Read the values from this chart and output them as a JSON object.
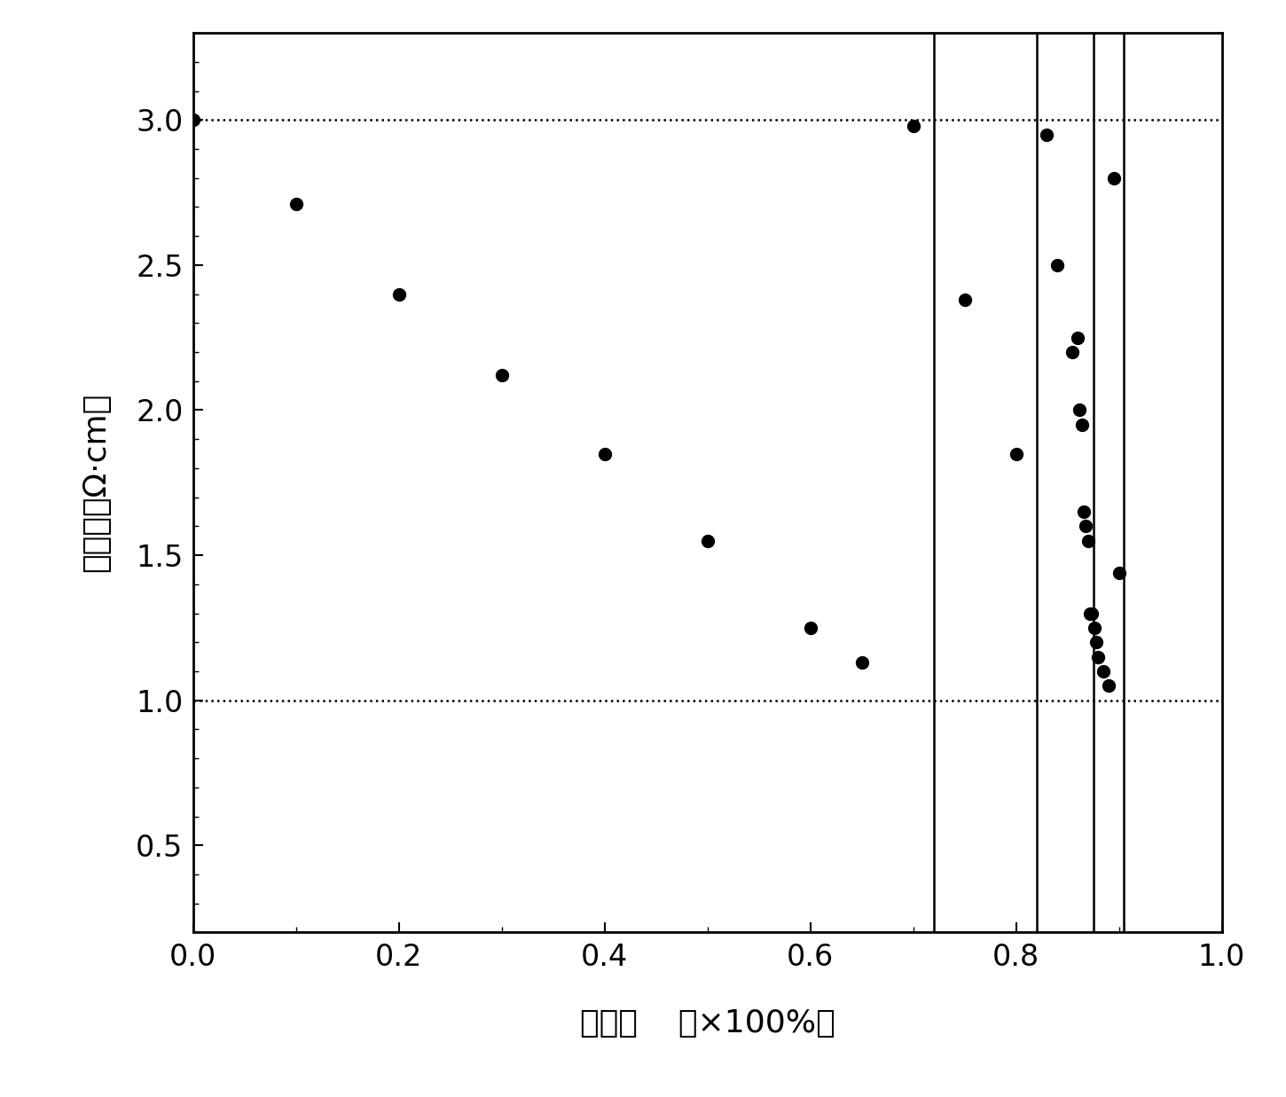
{
  "scatter_x": [
    0.0,
    0.1,
    0.2,
    0.3,
    0.4,
    0.5,
    0.6,
    0.65,
    0.7,
    0.75,
    0.8,
    0.83,
    0.84,
    0.855,
    0.86,
    0.862,
    0.864,
    0.866,
    0.868,
    0.87,
    0.872,
    0.874,
    0.876,
    0.878,
    0.88,
    0.885,
    0.89,
    0.895,
    0.9
  ],
  "scatter_y": [
    3.0,
    2.71,
    2.4,
    2.12,
    1.85,
    1.55,
    1.25,
    1.13,
    2.98,
    2.38,
    1.85,
    2.95,
    2.5,
    2.2,
    2.25,
    2.0,
    1.95,
    1.65,
    1.6,
    1.55,
    1.3,
    1.3,
    1.25,
    1.2,
    1.15,
    1.1,
    1.05,
    2.8,
    1.44
  ],
  "vlines": [
    0.72,
    0.82,
    0.875,
    0.905
  ],
  "hlines": [
    1.0,
    3.0
  ],
  "xlim": [
    0.0,
    1.0
  ],
  "ylim": [
    0.2,
    3.3
  ],
  "xticks": [
    0.0,
    0.2,
    0.4,
    0.6,
    0.8,
    1.0
  ],
  "yticks": [
    0.5,
    1.0,
    1.5,
    2.0,
    2.5,
    3.0
  ],
  "xlabel_cn": "固化率",
  "xlabel_en": "（×100%）",
  "ylabel_cn": "电阻率",
  "ylabel_unit": "（Ω·cm）",
  "dot_color": "#000000",
  "dot_size": 100,
  "hline_color": "#000000",
  "vline_color": "#000000",
  "background_color": "#ffffff",
  "fig_width": 14.5,
  "fig_height": 12.37,
  "dpi": 100
}
